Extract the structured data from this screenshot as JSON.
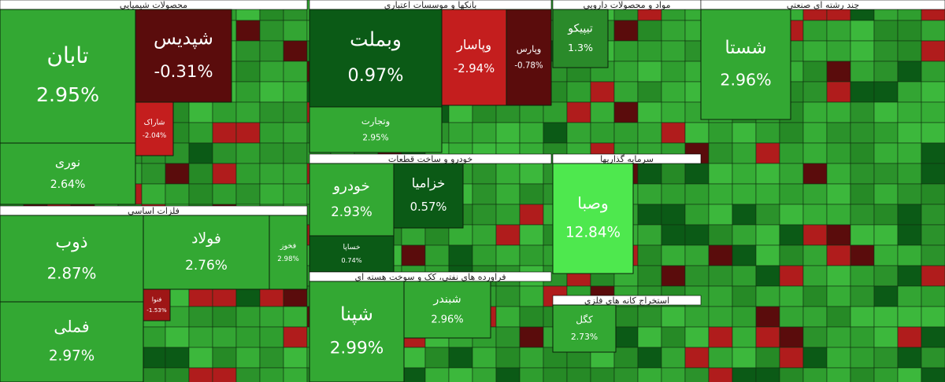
{
  "chart_data": {
    "type": "treemap",
    "groups": [
      {
        "name": "محصولات شیمیایی",
        "tiles": [
          {
            "label": "تابان",
            "value": 2.95,
            "value_label": "2.95%",
            "color": "#33a833"
          },
          {
            "label": "نوری",
            "value": 2.64,
            "value_label": "2.64%",
            "color": "#33a833"
          },
          {
            "label": "شپدیس",
            "value": -0.31,
            "value_label": "-0.31%",
            "color": "#5a0c0c"
          },
          {
            "label": "شاراک",
            "value": -2.04,
            "value_label": "-2.04%",
            "color": "#c41e1e"
          }
        ]
      },
      {
        "name": "فلزات اساسی",
        "tiles": [
          {
            "label": "ذوب",
            "value": 2.87,
            "value_label": "2.87%",
            "color": "#33a833"
          },
          {
            "label": "فملی",
            "value": 2.97,
            "value_label": "2.97%",
            "color": "#33a833"
          },
          {
            "label": "فولاد",
            "value": 2.76,
            "value_label": "2.76%",
            "color": "#33a833"
          },
          {
            "label": "فخوز",
            "value": 2.98,
            "value_label": "2.98%",
            "color": "#33a833"
          },
          {
            "label": "فنوا",
            "value": -1.53,
            "value_label": "-1.53%",
            "color": "#9e1616"
          }
        ]
      },
      {
        "name": "بانکها و موسسات اعتباری",
        "tiles": [
          {
            "label": "وبملت",
            "value": 0.97,
            "value_label": "0.97%",
            "color": "#0b5a16"
          },
          {
            "label": "وتجارت",
            "value": 2.95,
            "value_label": "2.95%",
            "color": "#33a833"
          },
          {
            "label": "وپاسار",
            "value": -2.94,
            "value_label": "-2.94%",
            "color": "#c41e1e"
          },
          {
            "label": "وپارس",
            "value": -0.78,
            "value_label": "-0.78%",
            "color": "#5a0c0c"
          }
        ]
      },
      {
        "name": "خودرو و ساخت قطعات",
        "tiles": [
          {
            "label": "خودرو",
            "value": 2.93,
            "value_label": "2.93%",
            "color": "#33a833"
          },
          {
            "label": "خساپا",
            "value": 0.74,
            "value_label": "0.74%",
            "color": "#0b5a16"
          },
          {
            "label": "خزامیا",
            "value": 0.57,
            "value_label": "0.57%",
            "color": "#0b5a16"
          }
        ]
      },
      {
        "name": "فراورده های نفتی، کک و سوخت هسته ای",
        "tiles": [
          {
            "label": "شپنا",
            "value": 2.99,
            "value_label": "2.99%",
            "color": "#33a833"
          },
          {
            "label": "شبندر",
            "value": 2.96,
            "value_label": "2.96%",
            "color": "#33a833"
          }
        ]
      },
      {
        "name": "مواد و محصولات دارویی",
        "tiles": [
          {
            "label": "تیپیکو",
            "value": 1.3,
            "value_label": "1.3%",
            "color": "#2a8a2a"
          }
        ]
      },
      {
        "name": "سرمایه گذاریها",
        "tiles": [
          {
            "label": "وصبا",
            "value": 12.84,
            "value_label": "12.84%",
            "color": "#4ee84e"
          }
        ]
      },
      {
        "name": "استخراج کانه های فلزی",
        "tiles": [
          {
            "label": "کگل",
            "value": 2.73,
            "value_label": "2.73%",
            "color": "#33a833"
          }
        ]
      },
      {
        "name": "چند رشته ای صنعتی",
        "tiles": [
          {
            "label": "شستا",
            "value": 2.96,
            "value_label": "2.96%",
            "color": "#33a833"
          }
        ]
      }
    ]
  }
}
